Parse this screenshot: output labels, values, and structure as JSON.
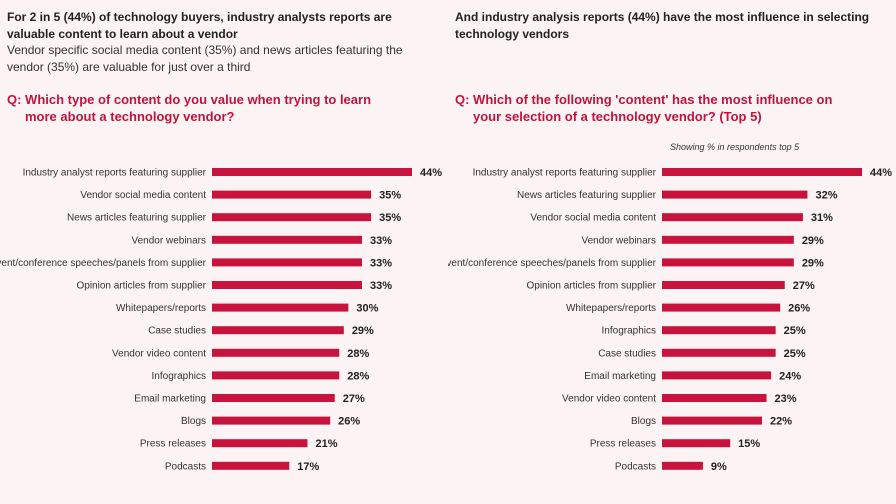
{
  "left": {
    "headline": "For 2 in 5 (44%) of technology buyers, industry analysts reports are valuable content to learn about a vendor",
    "subline": "Vendor specific social media content (35%) and news articles featuring the vendor (35%) are valuable for just over a third",
    "question_line1": "Q: Which type of content do you value when trying to learn",
    "question_line2": "more about a technology vendor?"
  },
  "right": {
    "headline": "And industry analysis reports (44%) have the most influence in selecting technology vendors",
    "question_line1": "Q: Which of the following 'content' has the most influence on",
    "question_line2": "your selection of a technology vendor? (Top 5)",
    "note": "Showing % in respondents top 5"
  },
  "colors": {
    "bar": "#c8143c",
    "question": "#c0143c",
    "background": "#fbf3f4"
  },
  "chart_data": [
    {
      "type": "bar",
      "orientation": "horizontal",
      "unit": "%",
      "categories": [
        "Industry analyst reports featuring supplier",
        "Vendor social media content",
        "News articles featuring supplier",
        "Vendor webinars",
        "Event/conference speeches/panels from supplier",
        "Opinion articles from supplier",
        "Whitepapers/reports",
        "Case studies",
        "Vendor video content",
        "Infographics",
        "Email marketing",
        "Blogs",
        "Press releases",
        "Podcasts"
      ],
      "values": [
        44,
        35,
        35,
        33,
        33,
        33,
        30,
        29,
        28,
        28,
        27,
        26,
        21,
        17
      ],
      "value_labels": [
        "44%",
        "35%",
        "35%",
        "33%",
        "33%",
        "33%",
        "30%",
        "29%",
        "28%",
        "28%",
        "27%",
        "26%",
        "21%",
        "17%"
      ],
      "xlim": [
        0,
        44
      ]
    },
    {
      "type": "bar",
      "orientation": "horizontal",
      "unit": "%",
      "categories": [
        "Industry analyst reports featuring supplier",
        "News articles featuring supplier",
        "Vendor social media content",
        "Vendor webinars",
        "Event/conference speeches/panels from supplier",
        "Opinion articles from supplier",
        "Whitepapers/reports",
        "Infographics",
        "Case studies",
        "Email marketing",
        "Vendor video content",
        "Blogs",
        "Press releases",
        "Podcasts"
      ],
      "values": [
        44,
        32,
        31,
        29,
        29,
        27,
        26,
        25,
        25,
        24,
        23,
        22,
        15,
        9
      ],
      "value_labels": [
        "44%",
        "32%",
        "31%",
        "29%",
        "29%",
        "27%",
        "26%",
        "25%",
        "25%",
        "24%",
        "23%",
        "22%",
        "15%",
        "9%"
      ],
      "xlim": [
        0,
        44
      ]
    }
  ]
}
